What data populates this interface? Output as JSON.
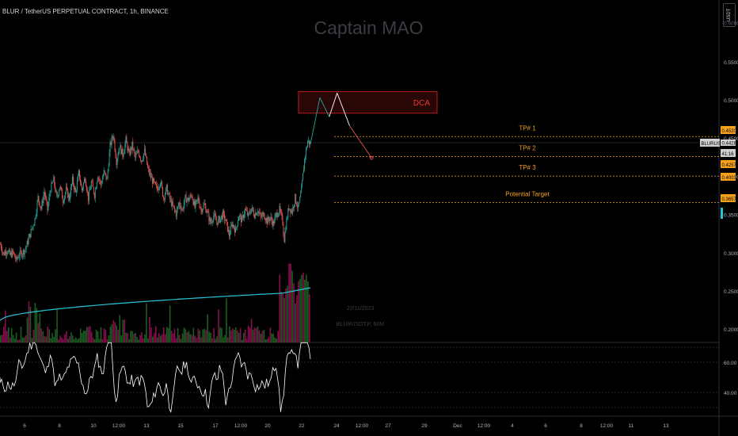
{
  "header": {
    "title": "BLUR / TetherUS PERPETUAL CONTRACT, 1h, BINANCE",
    "currency_button": "USDT"
  },
  "watermark": {
    "text": "Captain MAO",
    "date": "22/11/2023",
    "symbol": "BLURUSDT.P, 60M"
  },
  "colors": {
    "up": "#26a69a",
    "down": "#ef5350",
    "volume_up": "#1b5e20",
    "volume_down": "#880e4f",
    "ma": "#26c6da",
    "rsi": "#ffffff",
    "tp_line": "#f0a020",
    "dca_box": "#b71c1c"
  },
  "annotations": {
    "dca_label": "DCA",
    "tp1": "TP# 1",
    "tp2": "TP# 2",
    "tp3": "TP# 3",
    "potential": "Potential Target"
  },
  "price_axis": {
    "ticks": [
      "0.5500",
      "0.5000",
      "0.4500",
      "0.4000",
      "0.3500",
      "0.3000",
      "0.2500",
      "0.2000"
    ],
    "top_tick": "0.6000",
    "rsi_ticks": [
      "60.00",
      "40.00"
    ],
    "tags": [
      {
        "text": "0.4520",
        "value": 0.452,
        "color": "#f7a21b"
      },
      {
        "text": "BLURUSDT.P",
        "value": 0.4428,
        "color": "#cfcfcf"
      },
      {
        "text": "0.4428",
        "value": 0.4428,
        "color": "#cfcfcf"
      },
      {
        "text": "41:16",
        "value": 0.4428,
        "color": "#cfcfcf"
      },
      {
        "text": "0.4257",
        "value": 0.4257,
        "color": "#f7a21b"
      },
      {
        "text": "0.4003",
        "value": 0.4003,
        "color": "#f7a21b"
      },
      {
        "text": "0.3657",
        "value": 0.3657,
        "color": "#f7a21b"
      }
    ]
  },
  "time_axis": {
    "ticks": [
      "6",
      "8",
      "10",
      "12:00",
      "13",
      "15",
      "17",
      "12:00",
      "20",
      "22",
      "24",
      "12:00",
      "27",
      "29",
      "Dec",
      "12:00",
      "4",
      "6",
      "8",
      "12:00",
      "11",
      "13"
    ]
  },
  "chart_data": {
    "type": "candlestick",
    "title": "",
    "ylim": [
      0.18,
      0.61
    ],
    "levels": [
      {
        "name": "TP# 1",
        "value": 0.452
      },
      {
        "name": "TP# 2",
        "value": 0.4257
      },
      {
        "name": "TP# 3",
        "value": 0.4003
      },
      {
        "name": "Potential Target",
        "value": 0.3657
      },
      {
        "name": "current",
        "value": 0.4428
      }
    ],
    "dca_zone": [
      0.4826,
      0.5108
    ],
    "close_path": [
      [
        0,
        0.311
      ],
      [
        4,
        0.298
      ],
      [
        8,
        0.304
      ],
      [
        12,
        0.297
      ],
      [
        16,
        0.3
      ],
      [
        20,
        0.29
      ],
      [
        24,
        0.298
      ],
      [
        28,
        0.3
      ],
      [
        32,
        0.305
      ],
      [
        36,
        0.318
      ],
      [
        40,
        0.331
      ],
      [
        44,
        0.344
      ],
      [
        48,
        0.372
      ],
      [
        52,
        0.358
      ],
      [
        56,
        0.38
      ],
      [
        60,
        0.356
      ],
      [
        64,
        0.384
      ],
      [
        68,
        0.395
      ],
      [
        72,
        0.371
      ],
      [
        76,
        0.388
      ],
      [
        80,
        0.369
      ],
      [
        84,
        0.382
      ],
      [
        88,
        0.371
      ],
      [
        92,
        0.395
      ],
      [
        96,
        0.378
      ],
      [
        100,
        0.404
      ],
      [
        104,
        0.382
      ],
      [
        108,
        0.399
      ],
      [
        112,
        0.371
      ],
      [
        116,
        0.392
      ],
      [
        120,
        0.376
      ],
      [
        124,
        0.402
      ],
      [
        128,
        0.389
      ],
      [
        132,
        0.405
      ],
      [
        136,
        0.396
      ],
      [
        140,
        0.44
      ],
      [
        144,
        0.455
      ],
      [
        148,
        0.42
      ],
      [
        152,
        0.44
      ],
      [
        156,
        0.428
      ],
      [
        160,
        0.447
      ],
      [
        164,
        0.428
      ],
      [
        168,
        0.441
      ],
      [
        172,
        0.424
      ],
      [
        176,
        0.433
      ],
      [
        180,
        0.421
      ],
      [
        184,
        0.433
      ],
      [
        188,
        0.41
      ],
      [
        192,
        0.399
      ],
      [
        196,
        0.39
      ],
      [
        200,
        0.383
      ],
      [
        204,
        0.394
      ],
      [
        208,
        0.372
      ],
      [
        212,
        0.384
      ],
      [
        216,
        0.37
      ],
      [
        220,
        0.36
      ],
      [
        224,
        0.351
      ],
      [
        228,
        0.365
      ],
      [
        232,
        0.356
      ],
      [
        236,
        0.371
      ],
      [
        240,
        0.369
      ],
      [
        244,
        0.376
      ],
      [
        248,
        0.359
      ],
      [
        252,
        0.371
      ],
      [
        256,
        0.356
      ],
      [
        260,
        0.363
      ],
      [
        264,
        0.352
      ],
      [
        268,
        0.339
      ],
      [
        272,
        0.349
      ],
      [
        276,
        0.34
      ],
      [
        280,
        0.344
      ],
      [
        284,
        0.35
      ],
      [
        288,
        0.34
      ],
      [
        292,
        0.323
      ],
      [
        296,
        0.338
      ],
      [
        300,
        0.329
      ],
      [
        304,
        0.349
      ],
      [
        308,
        0.342
      ],
      [
        312,
        0.356
      ],
      [
        316,
        0.348
      ],
      [
        320,
        0.358
      ],
      [
        324,
        0.35
      ],
      [
        328,
        0.356
      ],
      [
        332,
        0.346
      ],
      [
        336,
        0.351
      ],
      [
        340,
        0.341
      ],
      [
        344,
        0.346
      ],
      [
        348,
        0.338
      ],
      [
        352,
        0.35
      ],
      [
        356,
        0.356
      ],
      [
        360,
        0.34
      ],
      [
        362,
        0.318
      ],
      [
        364,
        0.335
      ],
      [
        368,
        0.36
      ],
      [
        372,
        0.354
      ],
      [
        376,
        0.372
      ],
      [
        380,
        0.358
      ],
      [
        384,
        0.381
      ],
      [
        388,
        0.422
      ],
      [
        392,
        0.446
      ],
      [
        396,
        0.442
      ],
      [
        400,
        0.455
      ]
    ],
    "projection": [
      [
        396,
        0.442
      ],
      [
        408,
        0.503
      ],
      [
        420,
        0.478
      ],
      [
        430,
        0.509
      ],
      [
        446,
        0.466
      ],
      [
        474,
        0.424
      ]
    ]
  }
}
